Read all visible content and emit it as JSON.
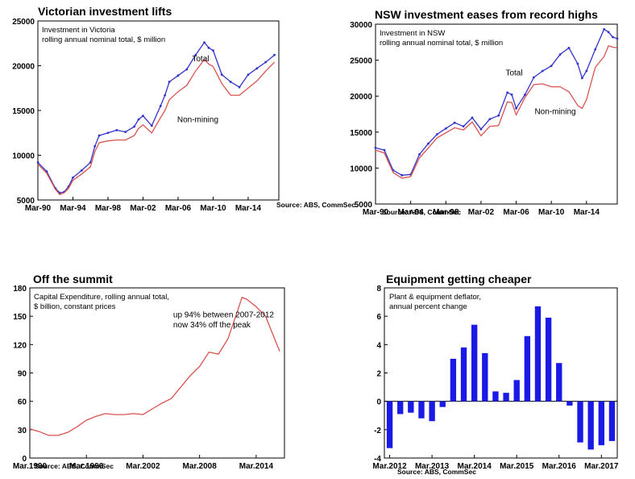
{
  "colors": {
    "total": "#3333cc",
    "non_mining": "#d9534f",
    "capex": "#d9534f",
    "bars": "#1a1ae6",
    "frame": "#000000"
  },
  "chart_data": [
    {
      "type": "line",
      "title": "Victorian investment lifts",
      "subtitle": [
        "Investment in Victoria",
        "rolling annual nominal total, $ million"
      ],
      "source": "Source: ABS, CommSec",
      "ylim": [
        5000,
        25000
      ],
      "yticks": [
        "5000",
        "10000",
        "15000",
        "20000",
        "25000"
      ],
      "xlim": [
        1990.0,
        2017.5
      ],
      "xticks": [
        {
          "label": "Mar-90",
          "at": 1990.0
        },
        {
          "label": "Mar-94",
          "at": 1994.0
        },
        {
          "label": "Mar-98",
          "at": 1998.0
        },
        {
          "label": "Mar-02",
          "at": 2002.0
        },
        {
          "label": "Mar-06",
          "at": 2006.0
        },
        {
          "label": "Mar-10",
          "at": 2010.0
        },
        {
          "label": "Mar-14",
          "at": 2014.0
        }
      ],
      "series": [
        {
          "name": "Total",
          "marker": true,
          "x": [
            1990.0,
            1991.0,
            1992.0,
            1992.5,
            1993.0,
            1993.5,
            1994.0,
            1995.0,
            1996.0,
            1996.5,
            1997.0,
            1998.0,
            1999.0,
            2000.0,
            2001.0,
            2001.5,
            2002.0,
            2003.0,
            2004.0,
            2004.5,
            2005.0,
            2006.0,
            2007.0,
            2008.0,
            2009.0,
            2009.5,
            2010.0,
            2011.0,
            2012.0,
            2013.0,
            2014.0,
            2015.0,
            2016.0,
            2017.0
          ],
          "y": [
            9200,
            8200,
            6300,
            5800,
            5900,
            6500,
            7500,
            8300,
            9200,
            11000,
            12200,
            12500,
            12800,
            12600,
            13200,
            14000,
            14400,
            13300,
            15500,
            16700,
            18200,
            18900,
            19600,
            21200,
            22600,
            22000,
            21700,
            19000,
            18200,
            17600,
            19000,
            19700,
            20400,
            21200
          ]
        },
        {
          "name": "Non-mining",
          "marker": false,
          "x": [
            1990.0,
            1991.0,
            1992.0,
            1992.5,
            1993.0,
            1993.5,
            1994.0,
            1995.0,
            1996.0,
            1996.5,
            1997.0,
            1998.0,
            1999.0,
            2000.0,
            2001.0,
            2001.5,
            2002.0,
            2003.0,
            2004.0,
            2004.5,
            2005.0,
            2006.0,
            2007.0,
            2008.0,
            2009.0,
            2009.5,
            2010.0,
            2011.0,
            2012.0,
            2013.0,
            2014.0,
            2015.0,
            2016.0,
            2017.0
          ],
          "y": [
            9000,
            8000,
            6200,
            5600,
            5800,
            6300,
            7200,
            7900,
            8700,
            10400,
            11400,
            11600,
            11700,
            11700,
            12200,
            13000,
            13400,
            12500,
            14200,
            15000,
            16200,
            17100,
            17800,
            19400,
            20700,
            20200,
            19900,
            18000,
            16700,
            16700,
            17500,
            18300,
            19400,
            20400
          ]
        }
      ],
      "annotations": [
        {
          "text": "Total",
          "x": 2007.6,
          "y": 20500
        },
        {
          "text": "Non-mining",
          "x": 2005.9,
          "y": 13700
        }
      ]
    },
    {
      "type": "line",
      "title": "NSW investment eases from record highs",
      "subtitle": [
        "Investment in NSW",
        "rolling annual nominal total, $ million"
      ],
      "source": "Source: ABS, CommSec",
      "ylim": [
        5000,
        30000
      ],
      "yticks": [
        "5000",
        "10000",
        "15000",
        "20000",
        "25000",
        "30000"
      ],
      "xlim": [
        1990.0,
        2017.5
      ],
      "xticks": [
        {
          "label": "Mar-90",
          "at": 1990.0
        },
        {
          "label": "Mar-94",
          "at": 1994.0
        },
        {
          "label": "Mar-98",
          "at": 1998.0
        },
        {
          "label": "Mar-02",
          "at": 2002.0
        },
        {
          "label": "Mar-06",
          "at": 2006.0
        },
        {
          "label": "Mar-10",
          "at": 2010.0
        },
        {
          "label": "Mar-14",
          "at": 2014.0
        }
      ],
      "series": [
        {
          "name": "Total",
          "marker": true,
          "x": [
            1990.0,
            1991.0,
            1992.0,
            1993.0,
            1994.0,
            1995.0,
            1996.0,
            1997.0,
            1998.0,
            1999.0,
            2000.0,
            2001.0,
            2002.0,
            2003.0,
            2004.0,
            2005.0,
            2005.5,
            2006.0,
            2007.0,
            2008.0,
            2009.0,
            2010.0,
            2011.0,
            2012.0,
            2013.0,
            2013.5,
            2014.0,
            2015.0,
            2016.0,
            2016.5,
            2017.0,
            2017.5
          ],
          "y": [
            12800,
            12500,
            9700,
            9000,
            9100,
            11900,
            13400,
            14700,
            15500,
            16300,
            15800,
            17000,
            15400,
            16800,
            17300,
            20500,
            20200,
            18300,
            20200,
            22600,
            23500,
            24200,
            25800,
            26700,
            24500,
            22500,
            23500,
            26500,
            29300,
            28900,
            28200,
            28000
          ]
        },
        {
          "name": "Non-mining",
          "marker": false,
          "x": [
            1990.0,
            1991.0,
            1992.0,
            1993.0,
            1994.0,
            1995.0,
            1996.0,
            1997.0,
            1998.0,
            1999.0,
            2000.0,
            2001.0,
            2002.0,
            2003.0,
            2004.0,
            2005.0,
            2005.5,
            2006.0,
            2007.0,
            2008.0,
            2009.0,
            2010.0,
            2011.0,
            2012.0,
            2013.0,
            2013.5,
            2014.0,
            2015.0,
            2016.0,
            2016.5,
            2017.0,
            2017.5
          ],
          "y": [
            12500,
            12100,
            9400,
            8600,
            8800,
            11400,
            12800,
            14200,
            14900,
            15600,
            15300,
            16400,
            14500,
            15800,
            15900,
            19200,
            19100,
            17400,
            19800,
            21600,
            21700,
            21300,
            21300,
            20600,
            18700,
            18300,
            19500,
            24000,
            25500,
            27000,
            26800,
            26700
          ]
        }
      ],
      "annotations": [
        {
          "text": "Total",
          "x": 2004.8,
          "y": 22900
        },
        {
          "text": "Non-mining",
          "x": 2008.1,
          "y": 17500
        }
      ]
    },
    {
      "type": "line",
      "title": "Off the summit",
      "subtitle": [
        "Capital Expenditure, rolling annual total,",
        "$ billion, constant prices"
      ],
      "source": "Source: ABS, CommSec",
      "ylim": [
        0,
        180
      ],
      "yticks": [
        "0",
        "30",
        "60",
        "90",
        "120",
        "150",
        "180"
      ],
      "xlim": [
        1990.0,
        2017.0
      ],
      "xticks": [
        {
          "label": "Mar.1990",
          "at": 1990.0
        },
        {
          "label": "Mar.1996",
          "at": 1996.0
        },
        {
          "label": "Mar.2002",
          "at": 2002.0
        },
        {
          "label": "Mar.2008",
          "at": 2008.0
        },
        {
          "label": "Mar.2014",
          "at": 2014.0
        }
      ],
      "series": [
        {
          "name": "",
          "marker": false,
          "x": [
            1990.0,
            1991.0,
            1992.0,
            1993.0,
            1994.0,
            1995.0,
            1996.0,
            1997.0,
            1998.0,
            1999.0,
            2000.0,
            2001.0,
            2002.0,
            2003.0,
            2004.0,
            2005.0,
            2006.0,
            2007.0,
            2008.0,
            2009.0,
            2010.0,
            2011.0,
            2012.0,
            2012.5,
            2013.0,
            2014.0,
            2015.0,
            2016.0,
            2016.5
          ],
          "y": [
            31,
            28,
            24,
            24,
            27,
            33,
            40,
            44,
            47,
            46,
            46,
            47,
            46,
            52,
            58,
            63,
            75,
            87,
            97,
            112,
            110,
            126,
            155,
            170,
            168,
            160,
            150,
            125,
            113
          ]
        }
      ],
      "annotations": [
        {
          "text": "up 94% between 2007-2012",
          "x": 2005.2,
          "y": 149
        },
        {
          "text": "now 34% off the peak",
          "x": 2005.2,
          "y": 138
        }
      ]
    },
    {
      "type": "bar",
      "title": "Equipment getting cheaper",
      "subtitle": [
        "Plant & equipment deflator,",
        "annual percent change"
      ],
      "source": "Source: ABS, CommSec",
      "ylim": [
        -4,
        8
      ],
      "yticks": [
        "-4",
        "-2",
        "0",
        "2",
        "4",
        "6",
        "8"
      ],
      "xticks": [
        {
          "label": "Mar.2012",
          "at": 0
        },
        {
          "label": "Mar.2013",
          "at": 4
        },
        {
          "label": "Mar.2014",
          "at": 8
        },
        {
          "label": "Mar.2015",
          "at": 12
        },
        {
          "label": "Mar.2016",
          "at": 16
        },
        {
          "label": "Mar.2017",
          "at": 20
        }
      ],
      "values": [
        -3.3,
        -0.9,
        -0.8,
        -1.2,
        -1.4,
        -0.4,
        3.0,
        3.8,
        5.4,
        3.4,
        0.7,
        0.6,
        1.5,
        4.6,
        6.7,
        5.9,
        2.7,
        -0.3,
        -2.9,
        -3.4,
        -3.1,
        -2.8
      ]
    }
  ]
}
